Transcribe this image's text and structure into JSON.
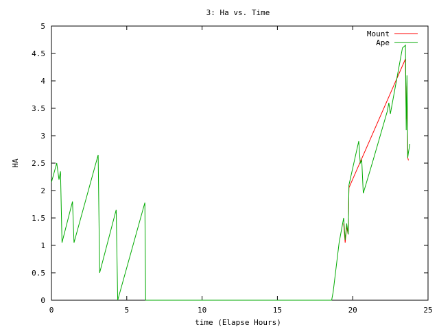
{
  "chart_data": {
    "type": "line",
    "title": "3: Ha vs. Time",
    "xlabel": "time (Elapse Hours)",
    "ylabel": "HA",
    "xlim": [
      0,
      25
    ],
    "ylim": [
      0,
      5
    ],
    "x_ticks": [
      "0",
      "5",
      "10",
      "15",
      "20",
      "25"
    ],
    "y_ticks": [
      "0",
      "0.5",
      "1",
      "1.5",
      "2",
      "2.5",
      "3",
      "3.5",
      "4",
      "4.5",
      "5"
    ],
    "grid": false,
    "legend_position": "top-right",
    "series": [
      {
        "name": "Mount",
        "color": "#ff0000",
        "x": [
          19.4,
          19.5,
          19.6,
          19.7,
          19.75,
          23.5,
          23.55,
          23.6,
          23.65,
          23.7
        ],
        "y": [
          1.4,
          1.05,
          1.35,
          1.2,
          2.05,
          4.4,
          3.3,
          3.9,
          2.6,
          2.55
        ]
      },
      {
        "name": "Ape",
        "color": "#00aa00",
        "x": [
          0.0,
          0.35,
          0.5,
          0.6,
          0.7,
          1.4,
          1.5,
          3.1,
          3.2,
          4.3,
          4.4,
          6.2,
          6.25,
          18.6,
          18.7,
          19.1,
          19.4,
          19.5,
          19.6,
          19.7,
          19.75,
          20.4,
          20.5,
          20.6,
          20.7,
          21.3,
          22.3,
          22.4,
          22.5,
          23.3,
          23.5,
          23.55,
          23.6,
          23.65,
          23.7,
          23.8
        ],
        "y": [
          2.15,
          2.5,
          2.2,
          2.35,
          1.05,
          1.8,
          1.05,
          2.65,
          0.5,
          1.65,
          0.0,
          1.78,
          0.0,
          0.0,
          0.15,
          1.05,
          1.5,
          1.1,
          1.4,
          1.2,
          2.1,
          2.9,
          2.5,
          2.55,
          1.95,
          2.5,
          3.45,
          3.6,
          3.4,
          4.6,
          4.65,
          3.1,
          4.1,
          2.6,
          2.7,
          2.85
        ]
      }
    ]
  }
}
